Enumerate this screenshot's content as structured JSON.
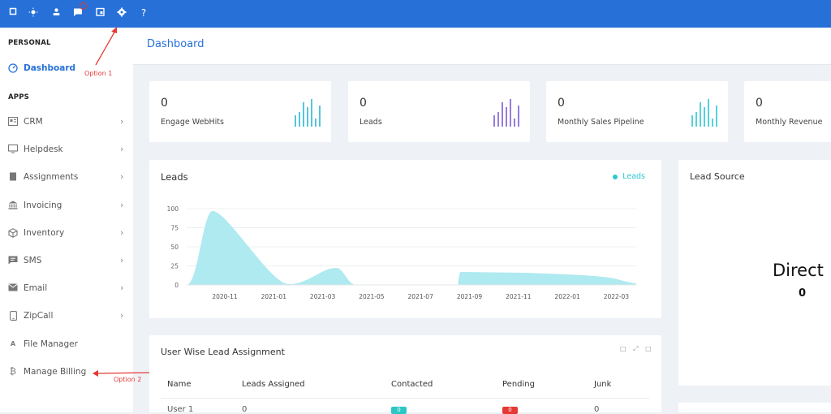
{
  "topbar": {
    "icons": [
      "square-icon",
      "sun-icon",
      "user-icon",
      "chat-icon",
      "calendar-icon",
      "gear-icon"
    ],
    "help_label": "?"
  },
  "sidebar": {
    "personal_label": "PERSONAL",
    "apps_label": "APPS",
    "dashboard": "Dashboard",
    "items": [
      {
        "label": "CRM",
        "icon": "id-card-icon"
      },
      {
        "label": "Helpdesk",
        "icon": "monitor-icon"
      },
      {
        "label": "Assignments",
        "icon": "book-icon"
      },
      {
        "label": "Invoicing",
        "icon": "bank-icon"
      },
      {
        "label": "Inventory",
        "icon": "box-icon"
      },
      {
        "label": "SMS",
        "icon": "message-icon"
      },
      {
        "label": "Email",
        "icon": "envelope-icon"
      },
      {
        "label": "ZipCall",
        "icon": "phone-icon"
      },
      {
        "label": "File Manager",
        "icon": "text-icon"
      },
      {
        "label": "Manage Billing",
        "icon": "bitcoin-icon"
      }
    ]
  },
  "annotations": {
    "option1": "Option 1",
    "option2": "Option 2"
  },
  "page": {
    "title": "Dashboard"
  },
  "stats": [
    {
      "value": "0",
      "label": "Engage WebHits",
      "color": "#2bb6d4"
    },
    {
      "value": "0",
      "label": "Leads",
      "color": "#7c5cd6"
    },
    {
      "value": "0",
      "label": "Monthly Sales Pipeline",
      "color": "#2bc7d4"
    },
    {
      "value": "0",
      "label": "Monthly Revenue",
      "color": "#2bc7d4"
    }
  ],
  "leads_chart": {
    "title": "Leads",
    "legend": "Leads",
    "color": "#aeeaf0",
    "chart_data": {
      "type": "area",
      "title": "Leads",
      "x": [
        "2020-11",
        "2021-01",
        "2021-03",
        "2021-05",
        "2021-07",
        "2021-09",
        "2021-11",
        "2022-01",
        "2022-03"
      ],
      "y_ticks": [
        0,
        25,
        50,
        75,
        100
      ],
      "ylim": [
        0,
        100
      ],
      "series": [
        {
          "name": "Leads",
          "values": [
            97,
            2,
            22,
            1,
            1,
            17,
            15,
            12,
            3
          ]
        }
      ]
    }
  },
  "lead_source": {
    "title": "Lead Source",
    "big_label": "Direct",
    "big_value": "0"
  },
  "assignment": {
    "title": "User Wise Lead Assignment",
    "headers": [
      "Name",
      "Leads Assigned",
      "Contacted",
      "Pending",
      "Junk"
    ],
    "rows": [
      {
        "name": "User 1",
        "assigned": "0",
        "contacted": "0",
        "pending": "0",
        "junk": "0"
      }
    ]
  }
}
